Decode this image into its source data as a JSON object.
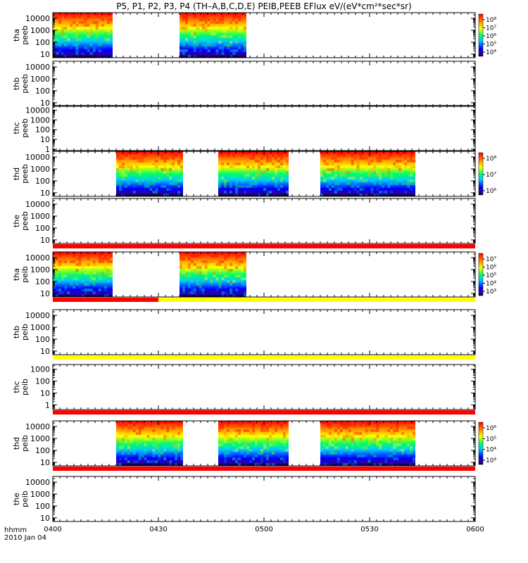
{
  "chart_data": {
    "type": "heatmap",
    "title": "P5, P1, P2, P3, P4 (TH–A,B,C,D,E) PEIB,PEEB EFlux eV/(eV*cm²*sec*sr)",
    "x_axis": {
      "label_line1": "hhmm",
      "label_line2": "2010 Jan 04",
      "ticks": [
        "0400",
        "0430",
        "0500",
        "0530",
        "0600"
      ],
      "range_hours": [
        4.0,
        6.0
      ]
    },
    "panels": [
      {
        "name": "thaPeeb",
        "label_line1": "tha",
        "label_line2": "peeb",
        "y_ticks": [
          "10000",
          "1000",
          "100",
          "10"
        ],
        "ylim_eV": [
          5,
          30000
        ],
        "segments_hhmm": [
          [
            "0400",
            "0417"
          ],
          [
            "0436",
            "0455"
          ]
        ],
        "colorbar": [
          "10⁸",
          "10⁷",
          "10⁶",
          "10⁵",
          "10⁴"
        ],
        "flag": null
      },
      {
        "name": "thbPeeb",
        "label_line1": "thb",
        "label_line2": "peeb",
        "y_ticks": [
          "10000",
          "1000",
          "100",
          "10"
        ],
        "ylim_eV": [
          5,
          30000
        ],
        "segments_hhmm": [],
        "colorbar": null,
        "flag": null
      },
      {
        "name": "thcPeeb",
        "label_line1": "thc",
        "label_line2": "peeb",
        "y_ticks": [
          "10000",
          "1000",
          "100",
          "10",
          "1"
        ],
        "ylim_eV": [
          0.7,
          30000
        ],
        "segments_hhmm": [],
        "colorbar": null,
        "flag": null
      },
      {
        "name": "thdPeeb",
        "label_line1": "thd",
        "label_line2": "peeb",
        "y_ticks": [
          "10000",
          "1000",
          "100",
          "10"
        ],
        "ylim_eV": [
          5,
          30000
        ],
        "segments_hhmm": [
          [
            "0418",
            "0437"
          ],
          [
            "0447",
            "0507"
          ],
          [
            "0516",
            "0543"
          ]
        ],
        "colorbar": [
          "10⁸",
          "10⁷",
          "10⁶"
        ],
        "flag": null
      },
      {
        "name": "thePeeb",
        "label_line1": "the",
        "label_line2": "peeb",
        "y_ticks": [
          "10000",
          "1000",
          "100",
          "10"
        ],
        "ylim_eV": [
          5,
          30000
        ],
        "segments_hhmm": [],
        "colorbar": null,
        "flag": [
          {
            "from": "0400",
            "to": "0600",
            "color": "#ff0000"
          }
        ]
      },
      {
        "name": "thaPeib",
        "label_line1": "tha",
        "label_line2": "peib",
        "y_ticks": [
          "10000",
          "1000",
          "100",
          "10"
        ],
        "ylim_eV": [
          5,
          30000
        ],
        "segments_hhmm": [
          [
            "0400",
            "0417"
          ],
          [
            "0436",
            "0455"
          ]
        ],
        "colorbar": [
          "10⁷",
          "10⁶",
          "10⁵",
          "10⁴",
          "10³"
        ],
        "flag": [
          {
            "from": "0400",
            "to": "0430",
            "color": "#ff0000"
          },
          {
            "from": "0430",
            "to": "0600",
            "color": "#ffff00"
          }
        ]
      },
      {
        "name": "thbPeib",
        "label_line1": "thb",
        "label_line2": "peib",
        "y_ticks": [
          "10000",
          "1000",
          "100",
          "10"
        ],
        "ylim_eV": [
          5,
          30000
        ],
        "segments_hhmm": [],
        "colorbar": null,
        "flag": [
          {
            "from": "0400",
            "to": "0600",
            "color": "#ffff00"
          }
        ]
      },
      {
        "name": "thcPeib",
        "label_line1": "thc",
        "label_line2": "peib",
        "y_ticks": [
          "1000",
          "100",
          "10",
          "1"
        ],
        "ylim_eV": [
          0.4,
          2500
        ],
        "segments_hhmm": [],
        "colorbar": null,
        "flag": [
          {
            "from": "0400",
            "to": "0600",
            "color": "#ff0000"
          }
        ]
      },
      {
        "name": "thdPeib",
        "label_line1": "thd",
        "label_line2": "peib",
        "y_ticks": [
          "10000",
          "1000",
          "100",
          "10"
        ],
        "ylim_eV": [
          5,
          30000
        ],
        "segments_hhmm": [
          [
            "0418",
            "0437"
          ],
          [
            "0447",
            "0507"
          ],
          [
            "0516",
            "0543"
          ]
        ],
        "colorbar": [
          "10⁶",
          "10⁵",
          "10⁴",
          "10³"
        ],
        "flag": [
          {
            "from": "0400",
            "to": "0600",
            "color": "#ff0000"
          }
        ]
      },
      {
        "name": "thePeib",
        "label_line1": "the",
        "label_line2": "peib",
        "y_ticks": [
          "10000",
          "1000",
          "100",
          "10"
        ],
        "ylim_eV": [
          5,
          30000
        ],
        "segments_hhmm": [],
        "colorbar": null,
        "flag": null
      }
    ]
  }
}
